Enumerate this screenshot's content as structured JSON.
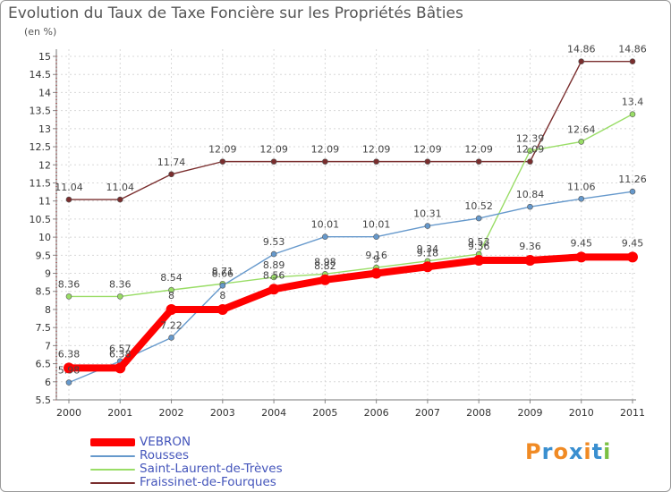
{
  "header": {
    "title": "Evolution du Taux de Taxe Foncière sur les Propriétés Bâties",
    "unit": "(en %)"
  },
  "logo": {
    "letters": [
      "P",
      "r",
      "o",
      "x",
      "i",
      "t",
      "i"
    ],
    "colors": [
      "#f08a24",
      "#3a8fd0",
      "#f08a24",
      "#3a8fd0",
      "#f08a24",
      "#3a8fd0",
      "#7bc043"
    ]
  },
  "chart_data": {
    "type": "line",
    "title": "Evolution du Taux de Taxe Foncière sur les Propriétés Bâties",
    "ylabel": "(en %)",
    "xlabel": "",
    "categories": [
      "2000",
      "2001",
      "2002",
      "2003",
      "2004",
      "2005",
      "2006",
      "2007",
      "2008",
      "2009",
      "2010",
      "2011"
    ],
    "ylim": [
      5.5,
      15
    ],
    "yticks": [
      "5.5",
      "6",
      "6.5",
      "7",
      "7.5",
      "8",
      "8.5",
      "9",
      "9.5",
      "10",
      "10.5",
      "11",
      "11.5",
      "12",
      "12.5",
      "13",
      "13.5",
      "14",
      "14.5",
      "15"
    ],
    "grid": true,
    "series": [
      {
        "name": "Fraissinet-de-Fourques",
        "color": "#7a2e2e",
        "width": 1.4,
        "marker": 3,
        "values": [
          11.04,
          11.04,
          11.74,
          12.09,
          12.09,
          12.09,
          12.09,
          12.09,
          12.09,
          12.09,
          14.86,
          14.86
        ],
        "labels": [
          "11.04",
          "11.04",
          "11.74",
          "12.09",
          "12.09",
          "12.09",
          "12.09",
          "12.09",
          "12.09",
          "12.09",
          "14.86",
          "14.86"
        ]
      },
      {
        "name": "Saint-Laurent-de-Trèves",
        "color": "#99dd66",
        "width": 1.4,
        "marker": 3,
        "values": [
          8.36,
          8.36,
          8.54,
          8.71,
          8.89,
          8.98,
          9.16,
          9.34,
          9.53,
          12.39,
          12.64,
          13.4
        ],
        "labels": [
          "8.36",
          "8.36",
          "8.54",
          "8.71",
          "8.89",
          "8.98",
          "9.16",
          "9.34",
          "9.53",
          "12.39",
          "12.64",
          "13.4"
        ]
      },
      {
        "name": "Rousses",
        "color": "#6699cc",
        "width": 1.4,
        "marker": 3,
        "values": [
          5.98,
          6.57,
          7.22,
          8.66,
          9.53,
          10.01,
          10.01,
          10.31,
          10.52,
          10.84,
          11.06,
          11.26
        ],
        "labels": [
          "5.98",
          "6.57",
          "7.22",
          "8.66",
          "9.53",
          "10.01",
          "10.01",
          "10.31",
          "10.52",
          "10.84",
          "11.06",
          "11.26"
        ]
      },
      {
        "name": "VEBRON",
        "color": "#ff0000",
        "width": 8,
        "marker": 6,
        "values": [
          6.38,
          6.38,
          8,
          8,
          8.56,
          8.82,
          9.0,
          9.18,
          9.36,
          9.36,
          9.45,
          9.45
        ],
        "labels": [
          "6.38",
          "6.38",
          "8",
          "8",
          "8.56",
          "8.82",
          "9",
          "9.18",
          "9.36",
          "9.36",
          "9.45",
          "9.45"
        ]
      }
    ],
    "legend_order": [
      "VEBRON",
      "Rousses",
      "Saint-Laurent-de-Trèves",
      "Fraissinet-de-Fourques"
    ]
  }
}
